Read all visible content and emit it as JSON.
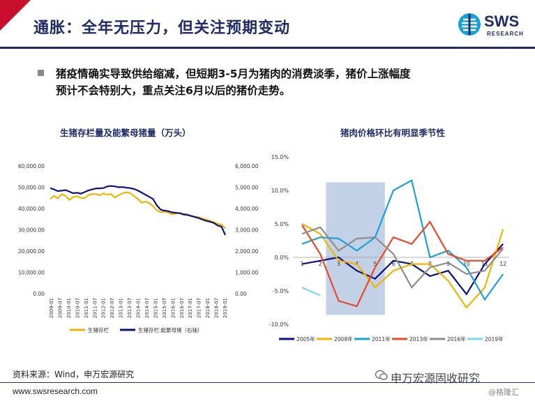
{
  "header": {
    "title": "通胀：全年无压力，但关注预期变动",
    "logo_text": "SWS",
    "logo_sub": "RESEARCH"
  },
  "bullet": {
    "line1": "猪疫情确实导致供给缩减，但短期3-5月为猪肉的消费淡季，猪价上涨幅度",
    "line2": "预计不会特别大，重点关注6月以后的猪价走势。"
  },
  "footer": {
    "source": "资料来源：Wind，申万宏源研究",
    "url": "www.swsresearch.com",
    "brand": "申万宏源固收研究",
    "watermark": "@格隆汇"
  },
  "colors": {
    "navy": "#1f2a6b",
    "red": "#c8102e",
    "gold": "#f0b400",
    "darkblue": "#0b1080",
    "cyan": "#1aa0d8",
    "orange_red": "#e8482a",
    "gray": "#8c8c8c",
    "light_cyan": "#7fd6f2",
    "shade": "#b8c9e2"
  },
  "chart_data": [
    {
      "type": "line",
      "title": "生猪存栏量及能繁母猪量（万头）",
      "x_tick_labels": [
        "2009-01",
        "2009-07",
        "2010-01",
        "2010-07",
        "2011-01",
        "2011-07",
        "2012-01",
        "2012-07",
        "2013-01",
        "2013-07",
        "2014-01",
        "2014-07",
        "2015-01",
        "2015-07",
        "2016-01",
        "2016-07",
        "2017-01",
        "2017-07",
        "2018-01",
        "2018-07",
        "2019-01"
      ],
      "ylim_left": [
        0,
        60000
      ],
      "ylim_right": [
        0,
        6000
      ],
      "y_ticks_left": [
        "0.00",
        "10,000.00",
        "20,000.00",
        "30,000.00",
        "40,000.00",
        "50,000.00",
        "60,000.00"
      ],
      "y_ticks_right": [
        "0.00",
        "1,000.00",
        "2,000.00",
        "3,000.00",
        "4,000.00",
        "5,000.00",
        "6,000.00"
      ],
      "series": [
        {
          "name": "生猪存栏",
          "axis": "left",
          "color": "#f0b400",
          "values": [
            44500,
            46000,
            44800,
            46800,
            46000,
            44000,
            45300,
            45800,
            45000,
            44800,
            46300,
            46800,
            46800,
            46200,
            47100,
            46500,
            46800,
            45200,
            46300,
            47200,
            47600,
            47300,
            45800,
            44600,
            42800,
            43200,
            42600,
            41100,
            39200,
            38300,
            38500,
            38100,
            37300,
            37600,
            37900,
            37600,
            37200,
            36600,
            36200,
            35900,
            35300,
            34900,
            34200,
            33600,
            32800,
            32400,
            30700
          ]
        },
        {
          "name": "生猪存栏:能繁母猪（右轴）",
          "axis": "right",
          "color": "#0b1080",
          "values": [
            4960,
            4900,
            4820,
            4840,
            4870,
            4800,
            4720,
            4740,
            4700,
            4770,
            4850,
            4900,
            4940,
            4950,
            4960,
            5040,
            5060,
            5040,
            5000,
            5010,
            4980,
            4960,
            4920,
            4850,
            4750,
            4650,
            4550,
            4450,
            4150,
            3950,
            3900,
            3880,
            3820,
            3800,
            3780,
            3720,
            3700,
            3650,
            3600,
            3550,
            3480,
            3420,
            3380,
            3320,
            3200,
            3150,
            2750
          ]
        }
      ],
      "legend_position": "bottom"
    },
    {
      "type": "line",
      "title": "猪肉价格环比有明显季节性",
      "categories": [
        "1",
        "2",
        "3",
        "4",
        "5",
        "6",
        "7",
        "8",
        "9",
        "10",
        "11",
        "12"
      ],
      "ylim": [
        -10,
        15
      ],
      "y_ticks": [
        "-10.0%",
        "-5.0%",
        "0.0%",
        "5.0%",
        "10.0%",
        "15.0%"
      ],
      "highlight_range": [
        "3",
        "5"
      ],
      "series": [
        {
          "name": "2005年",
          "color": "#0b1080",
          "values": [
            -1.0,
            -0.5,
            0.0,
            -2.0,
            -3.2,
            -0.5,
            -1.0,
            -2.8,
            -2.0,
            -5.5,
            -1.0,
            2.0
          ]
        },
        {
          "name": "2008年",
          "color": "#f0b400",
          "values": [
            5.0,
            3.5,
            -0.5,
            -1.0,
            -4.5,
            -2.0,
            -1.0,
            -1.0,
            -3.5,
            -7.5,
            -4.5,
            4.2
          ]
        },
        {
          "name": "2011年",
          "color": "#1aa0d8",
          "values": [
            2.0,
            3.0,
            2.8,
            1.0,
            3.0,
            10.0,
            11.5,
            0.0,
            1.0,
            -1.5,
            -6.3,
            -2.5
          ]
        },
        {
          "name": "2013年",
          "color": "#e8482a",
          "values": [
            4.8,
            0.5,
            -6.5,
            -7.3,
            -1.5,
            3.0,
            2.0,
            5.3,
            0.5,
            -0.5,
            -0.5,
            1.5
          ]
        },
        {
          "name": "2016年",
          "color": "#8c8c8c",
          "values": [
            3.5,
            4.5,
            1.0,
            2.8,
            3.0,
            0.5,
            -4.5,
            -1.5,
            -0.8,
            -2.5,
            -2.0,
            1.3
          ]
        },
        {
          "name": "2019年",
          "color": "#7fd6f2",
          "values": [
            -4.5,
            -5.7,
            null,
            null,
            null,
            null,
            null,
            null,
            null,
            null,
            null,
            null
          ]
        }
      ],
      "legend_position": "bottom"
    }
  ]
}
